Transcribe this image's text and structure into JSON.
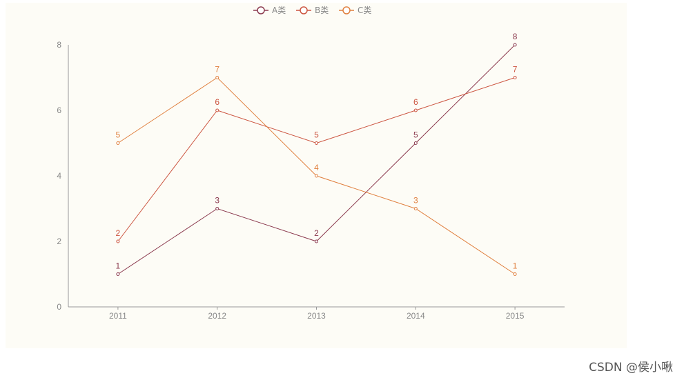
{
  "chart_data": {
    "type": "line",
    "categories": [
      "2011",
      "2012",
      "2013",
      "2014",
      "2015"
    ],
    "series": [
      {
        "name": "A类",
        "values": [
          1,
          3,
          2,
          5,
          8
        ],
        "color": "#8b3a4e"
      },
      {
        "name": "B类",
        "values": [
          2,
          6,
          5,
          6,
          7
        ],
        "color": "#cc5540"
      },
      {
        "name": "C类",
        "values": [
          5,
          7,
          4,
          3,
          1
        ],
        "color": "#e0803f"
      }
    ],
    "y_ticks": [
      0,
      2,
      4,
      6,
      8
    ],
    "ylim": [
      0,
      8
    ],
    "legend_position": "top-center",
    "grid": false,
    "data_labels": true,
    "axis_color": "#999999",
    "background": "#fdfcf6"
  },
  "watermark": "CSDN @侯小啾"
}
